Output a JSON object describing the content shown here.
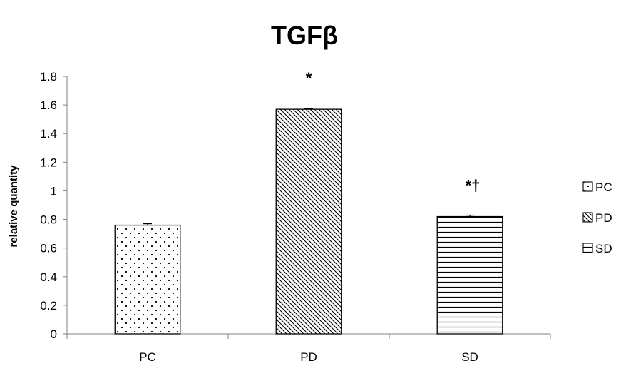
{
  "chart_data": {
    "type": "bar",
    "title": "TGFβ",
    "ylabel": "relative quantity",
    "xlabel": "",
    "categories": [
      "PC",
      "PD",
      "SD"
    ],
    "values": [
      0.76,
      1.57,
      0.82
    ],
    "errors": [
      0.01,
      0.005,
      0.01
    ],
    "annotations": [
      "",
      "*",
      "*†"
    ],
    "ylim": [
      0,
      1.8
    ],
    "yticks": [
      "0",
      "0.2",
      "0.4",
      "0.6",
      "0.8",
      "1",
      "1.2",
      "1.4",
      "1.6",
      "1.8"
    ],
    "grid": false,
    "legend": {
      "position": "right",
      "entries": [
        "PC",
        "PD",
        "SD"
      ]
    },
    "patterns": [
      "dots",
      "diagonal",
      "horizontal"
    ]
  }
}
